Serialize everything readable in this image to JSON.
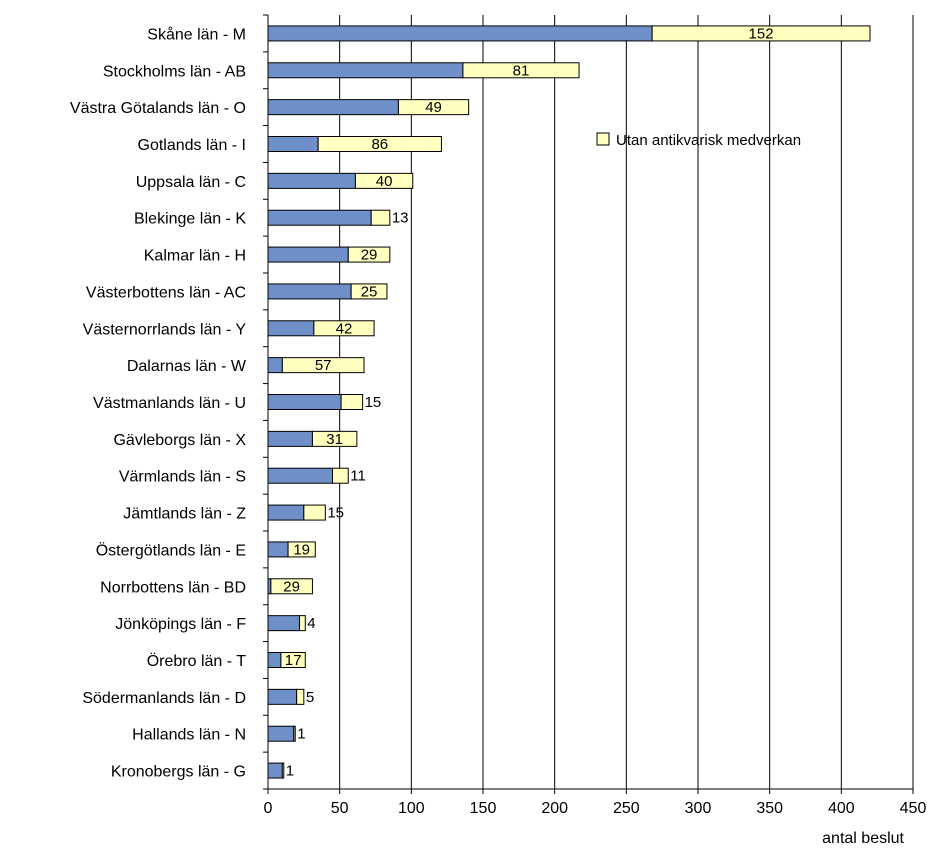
{
  "chart_data": {
    "type": "bar",
    "orientation": "horizontal",
    "stacked": true,
    "categories": [
      "Skåne län - M",
      "Stockholms län - AB",
      "Västra Götalands län - O",
      "Gotlands län - I",
      "Uppsala län - C",
      "Blekinge län - K",
      "Kalmar län - H",
      "Västerbottens län - AC",
      "Västernorrlands län - Y",
      "Dalarnas län - W",
      "Västmanlands län - U",
      "Gävleborgs län - X",
      "Värmlands län - S",
      "Jämtlands län - Z",
      "Östergötlands län - E",
      "Norrbottens län - BD",
      "Jönköpings län - F",
      "Örebro län - T",
      "Södermanlands län - D",
      "Hallands län - N",
      "Kronobergs län - G"
    ],
    "series": [
      {
        "name": "",
        "color": "#6f8fc9",
        "values": [
          268,
          136,
          91,
          35,
          61,
          72,
          56,
          58,
          32,
          10,
          51,
          31,
          45,
          25,
          14,
          2,
          22,
          9,
          20,
          18,
          10
        ],
        "labels": [
          "",
          "",
          "",
          "",
          "",
          "",
          "",
          "",
          "",
          "",
          "",
          "",
          "",
          "",
          "",
          "",
          "",
          "",
          "",
          "",
          ""
        ]
      },
      {
        "name": "Utan antikvarisk medverkan",
        "color": "#ffffc0",
        "values": [
          152,
          81,
          49,
          86,
          40,
          13,
          29,
          25,
          42,
          57,
          15,
          31,
          11,
          15,
          19,
          29,
          4,
          17,
          5,
          1,
          1
        ],
        "labels": [
          "152",
          "81",
          "49",
          "86",
          "40",
          "13",
          "29",
          "25",
          "42",
          "57",
          "15",
          "31",
          "11",
          "15",
          "19",
          "29",
          "4",
          "17",
          "5",
          "1",
          "1"
        ]
      }
    ],
    "xticks": [
      "0",
      "50",
      "100",
      "150",
      "200",
      "250",
      "300",
      "350",
      "400",
      "450"
    ],
    "xlim": [
      0,
      450
    ],
    "xlabel": "antal beslut",
    "ylabel": "",
    "title": "",
    "grid": "vertical",
    "legend_position": "upper-right",
    "legend_entries": [
      "Utan antikvarisk medverkan"
    ]
  }
}
